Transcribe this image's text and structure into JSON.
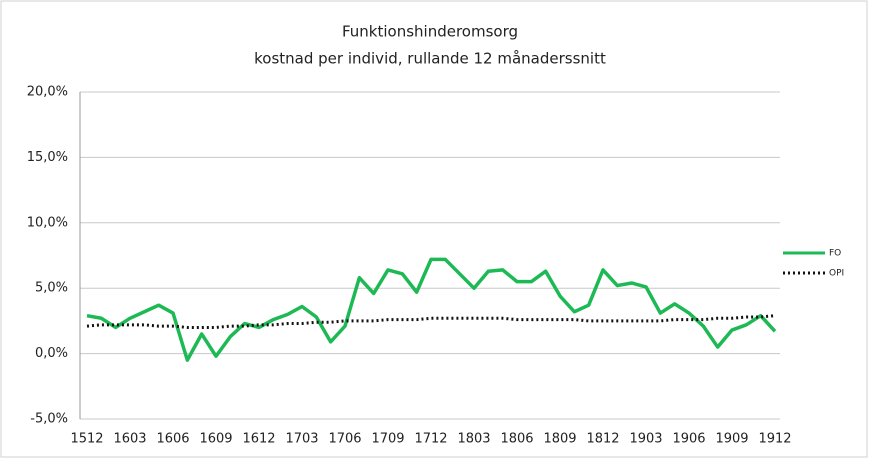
{
  "chart_data": {
    "type": "line",
    "title": "Funktionshinderomsorg",
    "subtitle": "kostnad per individ, rullande 12 månaderssnitt",
    "categories": [
      "1512",
      null,
      null,
      "1603",
      null,
      null,
      "1606",
      null,
      null,
      "1609",
      null,
      null,
      "1612",
      null,
      null,
      "1703",
      null,
      null,
      "1706",
      null,
      null,
      "1709",
      null,
      null,
      "1712",
      null,
      null,
      "1803",
      null,
      null,
      "1806",
      null,
      null,
      "1809",
      null,
      null,
      "1812",
      null,
      null,
      "1903",
      null,
      null,
      "1906",
      null,
      null,
      "1909",
      null,
      null,
      "1912"
    ],
    "series": [
      {
        "name": "FO",
        "color": "#1db954",
        "style": "solid",
        "values": [
          2.9,
          2.7,
          2.0,
          2.7,
          3.2,
          3.7,
          3.1,
          -0.5,
          1.5,
          -0.2,
          1.3,
          2.3,
          2.0,
          2.6,
          3.0,
          3.6,
          2.8,
          0.9,
          2.1,
          5.8,
          4.6,
          6.4,
          6.1,
          4.7,
          7.2,
          7.2,
          6.1,
          5.0,
          6.3,
          6.4,
          5.5,
          5.5,
          6.3,
          4.4,
          3.2,
          3.7,
          6.4,
          5.2,
          5.4,
          5.1,
          3.1,
          3.8,
          3.1,
          2.1,
          0.5,
          1.8,
          2.2,
          2.9,
          1.7
        ]
      },
      {
        "name": "OPI",
        "color": "#111111",
        "style": "dotted",
        "values": [
          2.1,
          2.2,
          2.2,
          2.2,
          2.2,
          2.1,
          2.1,
          2.0,
          2.0,
          2.0,
          2.1,
          2.1,
          2.2,
          2.2,
          2.3,
          2.3,
          2.4,
          2.4,
          2.5,
          2.5,
          2.5,
          2.6,
          2.6,
          2.6,
          2.7,
          2.7,
          2.7,
          2.7,
          2.7,
          2.7,
          2.6,
          2.6,
          2.6,
          2.6,
          2.6,
          2.5,
          2.5,
          2.5,
          2.5,
          2.5,
          2.5,
          2.6,
          2.6,
          2.6,
          2.7,
          2.7,
          2.8,
          2.8,
          2.9
        ]
      }
    ],
    "ylim": [
      -5,
      20
    ],
    "yticks": [
      {
        "value": -5,
        "label": "-5,0%"
      },
      {
        "value": 0,
        "label": "0,0%"
      },
      {
        "value": 5,
        "label": "5,0%"
      },
      {
        "value": 10,
        "label": "10,0%"
      },
      {
        "value": 15,
        "label": "15,0%"
      },
      {
        "value": 20,
        "label": "20,0%"
      }
    ],
    "grid": true,
    "legend": "right"
  }
}
